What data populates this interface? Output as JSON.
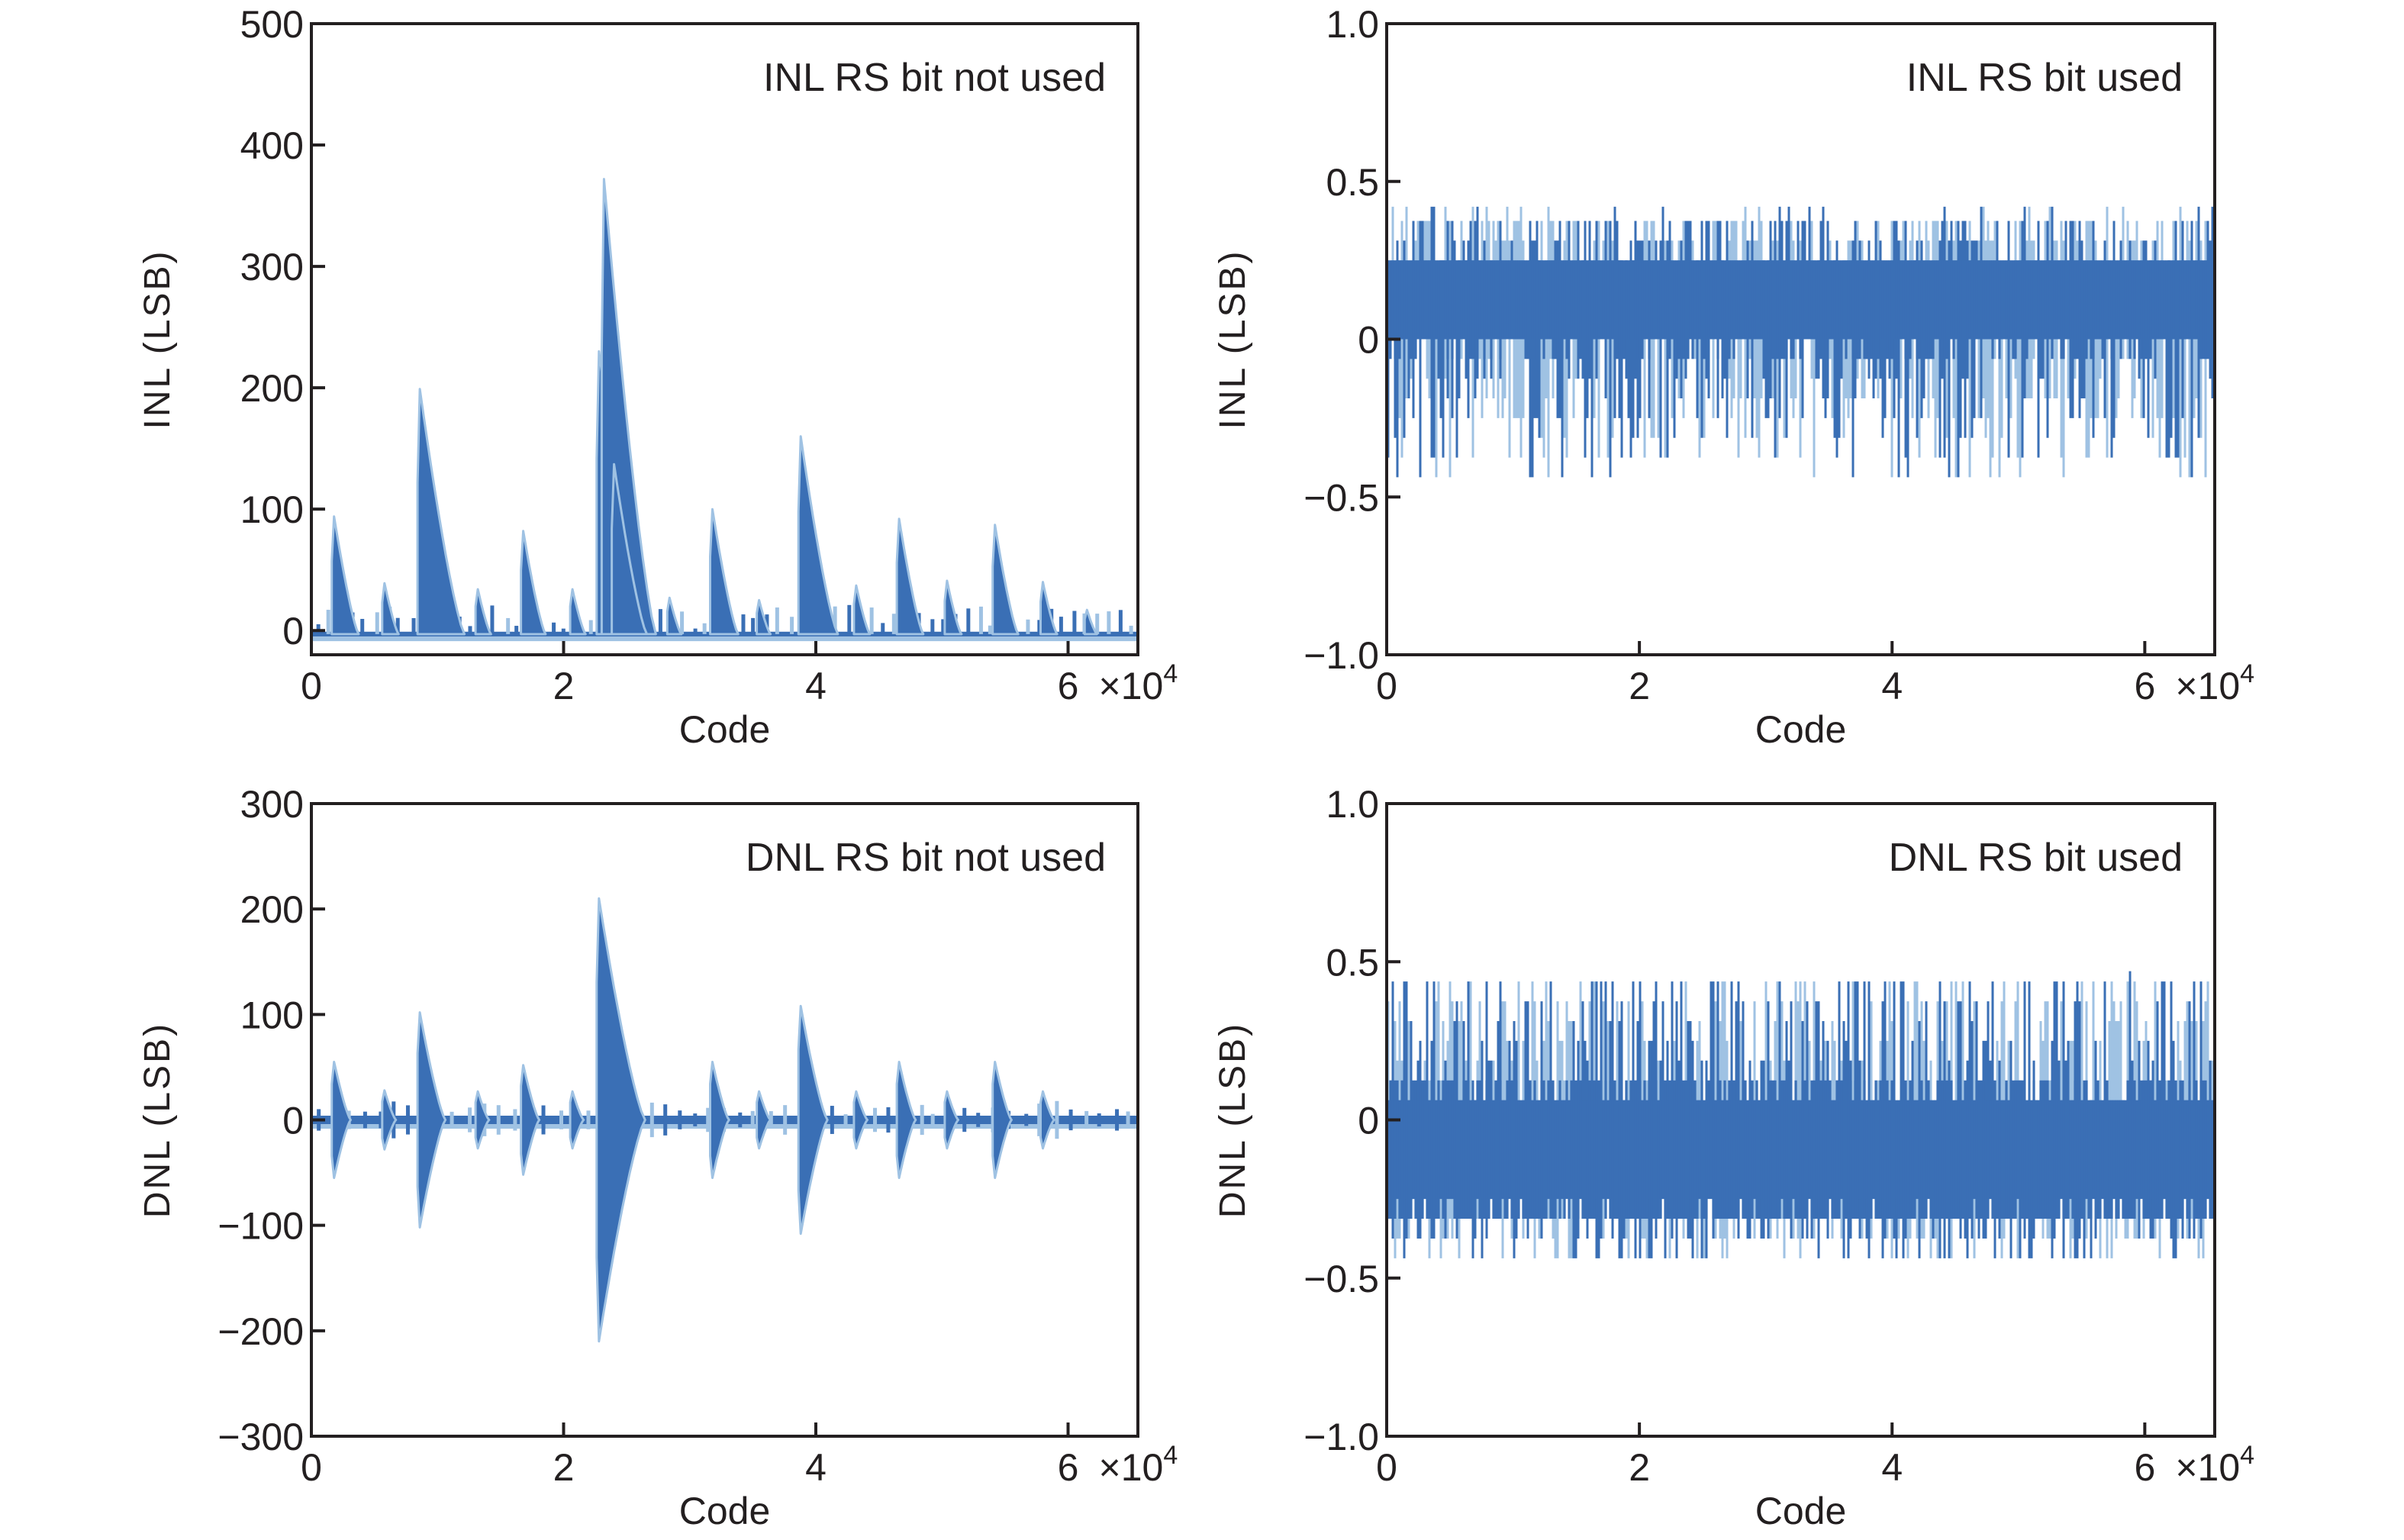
{
  "figure": {
    "colors": {
      "line": "#3a6fb5",
      "line_light": "#9fc2e3",
      "axis": "#231f20"
    }
  },
  "chart_data": [
    {
      "id": "inl-not-used",
      "type": "line",
      "annotation": "INL RS bit not used",
      "xlabel": "Code",
      "ylabel": "INL (LSB)",
      "xlim": [
        0,
        65536
      ],
      "ylim": [
        -20,
        500
      ],
      "xticks": [
        0,
        20000,
        40000,
        60000
      ],
      "xtick_labels": [
        "0",
        "2",
        "4",
        "6"
      ],
      "x_multiplier": "×10",
      "x_multiplier_exp": "4",
      "yticks": [
        0,
        100,
        200,
        300,
        400,
        500
      ],
      "ytick_labels": [
        "0",
        "100",
        "200",
        "300",
        "400",
        "500"
      ],
      "series": {
        "name": "INL",
        "kind": "spikes",
        "baseline": -3,
        "noise": 2,
        "spikes": [
          {
            "x": 1800,
            "value": 97
          },
          {
            "x": 5800,
            "value": 42
          },
          {
            "x": 8600,
            "value": 202
          },
          {
            "x": 13200,
            "value": 37
          },
          {
            "x": 16800,
            "value": 85
          },
          {
            "x": 20700,
            "value": 37
          },
          {
            "x": 22800,
            "value": 233
          },
          {
            "x": 23200,
            "value": 375
          },
          {
            "x": 24000,
            "value": 140
          },
          {
            "x": 28400,
            "value": 30
          },
          {
            "x": 31800,
            "value": 103
          },
          {
            "x": 35500,
            "value": 28
          },
          {
            "x": 38800,
            "value": 163
          },
          {
            "x": 43200,
            "value": 40
          },
          {
            "x": 46600,
            "value": 95
          },
          {
            "x": 50400,
            "value": 44
          },
          {
            "x": 54200,
            "value": 90
          },
          {
            "x": 58000,
            "value": 43
          },
          {
            "x": 61500,
            "value": 20
          }
        ],
        "small_spikes": 70,
        "small_max": 20
      }
    },
    {
      "id": "inl-used",
      "type": "line",
      "annotation": "INL RS bit used",
      "xlabel": "Code",
      "ylabel": "INL (LSB)",
      "xlim": [
        0,
        65536
      ],
      "ylim": [
        -1.0,
        1.0
      ],
      "xticks": [
        0,
        20000,
        40000,
        60000
      ],
      "xtick_labels": [
        "0",
        "2",
        "4",
        "6"
      ],
      "x_multiplier": "×10",
      "x_multiplier_exp": "4",
      "yticks": [
        -1.0,
        -0.5,
        0,
        0.5,
        1.0
      ],
      "ytick_labels": [
        "−1.0",
        "−0.5",
        "0",
        "0.5",
        "1.0"
      ],
      "series": {
        "name": "INL",
        "kind": "noise",
        "center": 0.1,
        "core_low": -0.05,
        "core_high": 0.28,
        "max": 0.42,
        "min": -0.45,
        "quantum": 0.0625
      }
    },
    {
      "id": "dnl-not-used",
      "type": "line",
      "annotation": "DNL RS bit not used",
      "xlabel": "Code",
      "ylabel": "DNL (LSB)",
      "xlim": [
        0,
        65536
      ],
      "ylim": [
        -300,
        300
      ],
      "xticks": [
        0,
        20000,
        40000,
        60000
      ],
      "xtick_labels": [
        "0",
        "2",
        "4",
        "6"
      ],
      "x_multiplier": "×10",
      "x_multiplier_exp": "4",
      "yticks": [
        -300,
        -200,
        -100,
        0,
        100,
        200,
        300
      ],
      "ytick_labels": [
        "−300",
        "−200",
        "−100",
        "0",
        "100",
        "200",
        "300"
      ],
      "series": {
        "name": "DNL",
        "kind": "symmetric-spikes",
        "baseline": 0,
        "noise": 4,
        "spikes": [
          {
            "x": 1800,
            "value": 55
          },
          {
            "x": 5800,
            "value": 28
          },
          {
            "x": 8600,
            "value": 102
          },
          {
            "x": 13200,
            "value": 27
          },
          {
            "x": 16800,
            "value": 52
          },
          {
            "x": 20700,
            "value": 27
          },
          {
            "x": 22800,
            "value": 210
          },
          {
            "x": 31800,
            "value": 55
          },
          {
            "x": 35500,
            "value": 27
          },
          {
            "x": 38800,
            "value": 108
          },
          {
            "x": 43200,
            "value": 27
          },
          {
            "x": 46600,
            "value": 55
          },
          {
            "x": 50400,
            "value": 27
          },
          {
            "x": 54200,
            "value": 55
          },
          {
            "x": 58000,
            "value": 27
          }
        ],
        "small_spikes": 55,
        "small_max": 14
      }
    },
    {
      "id": "dnl-used",
      "type": "line",
      "annotation": "DNL RS bit used",
      "xlabel": "Code",
      "ylabel": "DNL (LSB)",
      "xlim": [
        0,
        65536
      ],
      "ylim": [
        -1.0,
        1.0
      ],
      "xticks": [
        0,
        20000,
        40000,
        60000
      ],
      "xtick_labels": [
        "0",
        "2",
        "4",
        "6"
      ],
      "x_multiplier": "×10",
      "x_multiplier_exp": "4",
      "yticks": [
        -1.0,
        -0.5,
        0,
        0.5,
        1.0
      ],
      "ytick_labels": [
        "−1.0",
        "−0.5",
        "0",
        "0.5",
        "1.0"
      ],
      "series": {
        "name": "DNL",
        "kind": "noise",
        "center": -0.1,
        "core_low": -0.33,
        "core_high": 0.12,
        "max": 0.47,
        "min": -0.47,
        "quantum": 0.0625
      }
    }
  ]
}
